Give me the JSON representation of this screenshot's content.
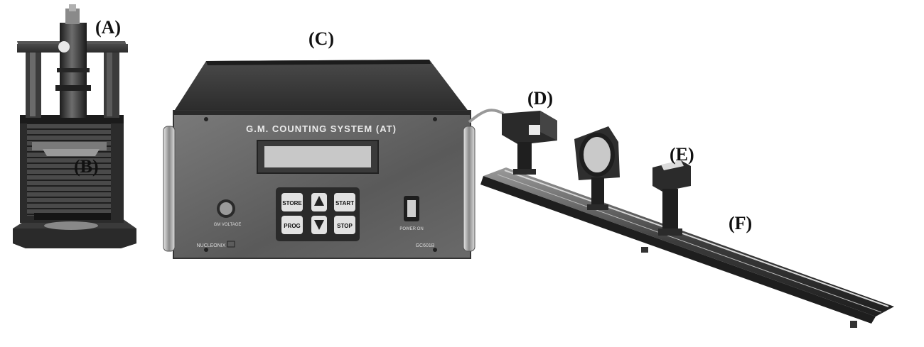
{
  "labels": {
    "a": "(A)",
    "b": "(B)",
    "c": "(C)",
    "d": "(D)",
    "e": "(E)",
    "f": "(F)"
  },
  "counter": {
    "title": "G.M. COUNTING SYSTEM (AT)",
    "knob_label": "GM VOLTAGE",
    "brand": "NUCLEONIX",
    "model": "GC601B",
    "power_label": "POWER ON",
    "keys": {
      "store": "STORE",
      "start": "START",
      "prog": "PROG",
      "stop": "STOP"
    }
  },
  "colors": {
    "metal_dark": "#2a2a2a",
    "metal_mid": "#6e6e6e",
    "metal_light": "#bdbdbd",
    "panel": "#5c5c5c",
    "display": "#c8c8c8"
  },
  "icons": {
    "up": "triangle-up-icon",
    "down": "triangle-down-icon"
  }
}
